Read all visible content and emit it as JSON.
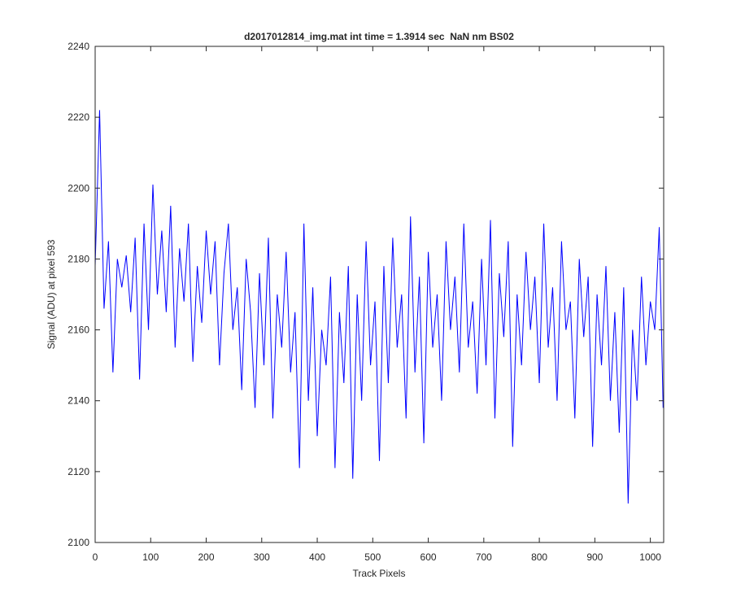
{
  "chart_data": {
    "type": "line",
    "title": "d2017012814_img.mat int time = 1.3914 sec  NaN nm BS02",
    "xlabel": "Track Pixels",
    "ylabel": "Signal (ADU) at pixel 593",
    "x": [
      0,
      8,
      16,
      24,
      32,
      40,
      48,
      56,
      64,
      72,
      80,
      88,
      96,
      104,
      112,
      120,
      128,
      136,
      144,
      152,
      160,
      168,
      176,
      184,
      192,
      200,
      208,
      216,
      224,
      232,
      240,
      248,
      256,
      264,
      272,
      280,
      288,
      296,
      304,
      312,
      320,
      328,
      336,
      344,
      352,
      360,
      368,
      376,
      384,
      392,
      400,
      408,
      416,
      424,
      432,
      440,
      448,
      456,
      464,
      472,
      480,
      488,
      496,
      504,
      512,
      520,
      528,
      536,
      544,
      552,
      560,
      568,
      576,
      584,
      592,
      600,
      608,
      616,
      624,
      632,
      640,
      648,
      656,
      664,
      672,
      680,
      688,
      696,
      704,
      712,
      720,
      728,
      736,
      744,
      752,
      760,
      768,
      776,
      784,
      792,
      800,
      808,
      816,
      824,
      832,
      840,
      848,
      856,
      864,
      872,
      880,
      888,
      896,
      904,
      912,
      920,
      928,
      936,
      944,
      952,
      960,
      968,
      976,
      984,
      992,
      1000,
      1008,
      1016,
      1023
    ],
    "series": [
      {
        "name": "signal",
        "color": "#0000ff",
        "values": [
          2178,
          2222,
          2166,
          2185,
          2148,
          2180,
          2172,
          2181,
          2165,
          2186,
          2146,
          2190,
          2160,
          2201,
          2170,
          2188,
          2165,
          2195,
          2155,
          2183,
          2168,
          2190,
          2151,
          2178,
          2162,
          2188,
          2170,
          2185,
          2150,
          2176,
          2190,
          2160,
          2172,
          2143,
          2180,
          2165,
          2138,
          2176,
          2150,
          2186,
          2135,
          2170,
          2155,
          2182,
          2148,
          2165,
          2121,
          2190,
          2140,
          2172,
          2130,
          2160,
          2150,
          2175,
          2121,
          2165,
          2145,
          2178,
          2118,
          2170,
          2140,
          2185,
          2150,
          2168,
          2123,
          2178,
          2145,
          2186,
          2155,
          2170,
          2135,
          2192,
          2148,
          2175,
          2128,
          2182,
          2155,
          2170,
          2140,
          2185,
          2160,
          2175,
          2148,
          2190,
          2155,
          2168,
          2142,
          2180,
          2150,
          2191,
          2135,
          2176,
          2158,
          2185,
          2127,
          2170,
          2150,
          2182,
          2160,
          2175,
          2145,
          2190,
          2155,
          2172,
          2140,
          2185,
          2160,
          2168,
          2135,
          2180,
          2158,
          2175,
          2127,
          2170,
          2150,
          2178,
          2140,
          2165,
          2131,
          2172,
          2111,
          2160,
          2140,
          2175,
          2150,
          2168,
          2160,
          2189,
          2138
        ]
      }
    ],
    "xlim": [
      0,
      1024
    ],
    "ylim": [
      2100,
      2240
    ],
    "xticks": [
      0,
      100,
      200,
      300,
      400,
      500,
      600,
      700,
      800,
      900,
      1000
    ],
    "yticks": [
      2100,
      2120,
      2140,
      2160,
      2180,
      2200,
      2220,
      2240
    ]
  }
}
